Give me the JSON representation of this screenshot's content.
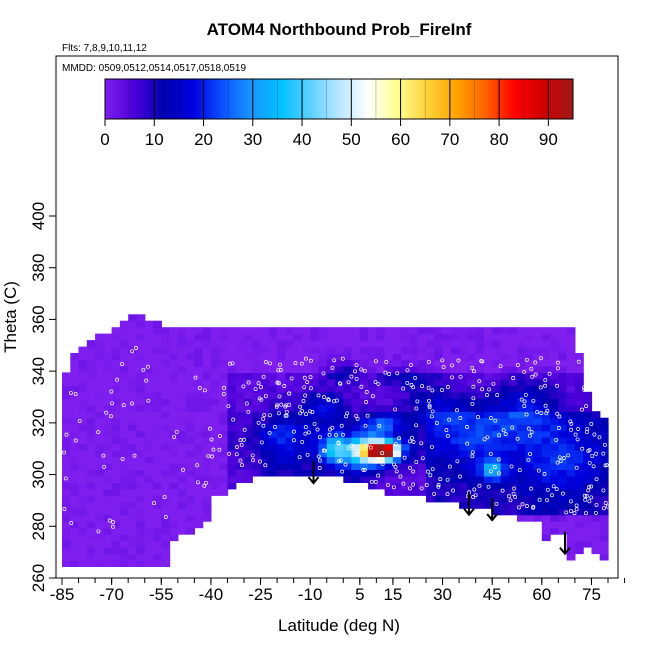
{
  "chart_data": {
    "type": "heatmap",
    "title": "ATOM4 Northbound Prob_FireInf",
    "subtitle_lines": [
      "Flts: 7,8,9,10,11,12",
      "MMDD: 0509,0512,0514,0517,0518,0519"
    ],
    "xlabel": "Latitude (deg N)",
    "ylabel": "Theta (C)",
    "xlim": [
      -88,
      88
    ],
    "ylim": [
      260,
      405
    ],
    "x_ticks": [
      -85,
      -70,
      -55,
      -40,
      -25,
      -10,
      5,
      15,
      30,
      45,
      60,
      75
    ],
    "y_ticks": [
      260,
      280,
      300,
      320,
      340,
      360,
      380,
      400
    ],
    "colorbar": {
      "range": [
        0,
        95
      ],
      "ticks": [
        0,
        10,
        20,
        30,
        40,
        50,
        60,
        70,
        80,
        90
      ],
      "stops": [
        "#7f1fef",
        "#4b00d9",
        "#0000b0",
        "#0000e0",
        "#0a50ff",
        "#1896ff",
        "#00c0ff",
        "#5ad0ff",
        "#b9e6ff",
        "#ffffff",
        "#ffff90",
        "#ffd23c",
        "#ffa500",
        "#ff6400",
        "#ff0000",
        "#cd0000",
        "#a01a1a"
      ]
    },
    "arrows_latitude": [
      -9,
      38,
      45,
      67
    ],
    "arrow_base_theta": 294,
    "colors": {
      "background_field": "#7f1fef",
      "arrow": "#000000",
      "data_points": "#ffffff"
    }
  }
}
